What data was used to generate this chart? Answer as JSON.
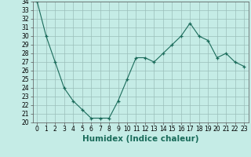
{
  "x": [
    0,
    1,
    2,
    3,
    4,
    5,
    6,
    7,
    8,
    9,
    10,
    11,
    12,
    13,
    14,
    15,
    16,
    17,
    18,
    19,
    20,
    21,
    22,
    23
  ],
  "y": [
    34,
    30,
    27,
    24,
    22.5,
    21.5,
    20.5,
    20.5,
    20.5,
    22.5,
    25,
    27.5,
    27.5,
    27,
    28,
    29,
    30,
    31.5,
    30,
    29.5,
    27.5,
    28,
    27,
    26.5
  ],
  "xlabel": "Humidex (Indice chaleur)",
  "ylim": [
    20,
    34
  ],
  "xlim": [
    -0.5,
    23.5
  ],
  "line_color": "#1a6b5a",
  "marker": "+",
  "marker_color": "#1a6b5a",
  "bg_color": "#c5ece6",
  "grid_color": "#9bbfba",
  "tick_fontsize": 5.5,
  "label_fontsize": 7.5,
  "yticks": [
    20,
    21,
    22,
    23,
    24,
    25,
    26,
    27,
    28,
    29,
    30,
    31,
    32,
    33,
    34
  ],
  "xticks": [
    0,
    1,
    2,
    3,
    4,
    5,
    6,
    7,
    8,
    9,
    10,
    11,
    12,
    13,
    14,
    15,
    16,
    17,
    18,
    19,
    20,
    21,
    22,
    23
  ]
}
